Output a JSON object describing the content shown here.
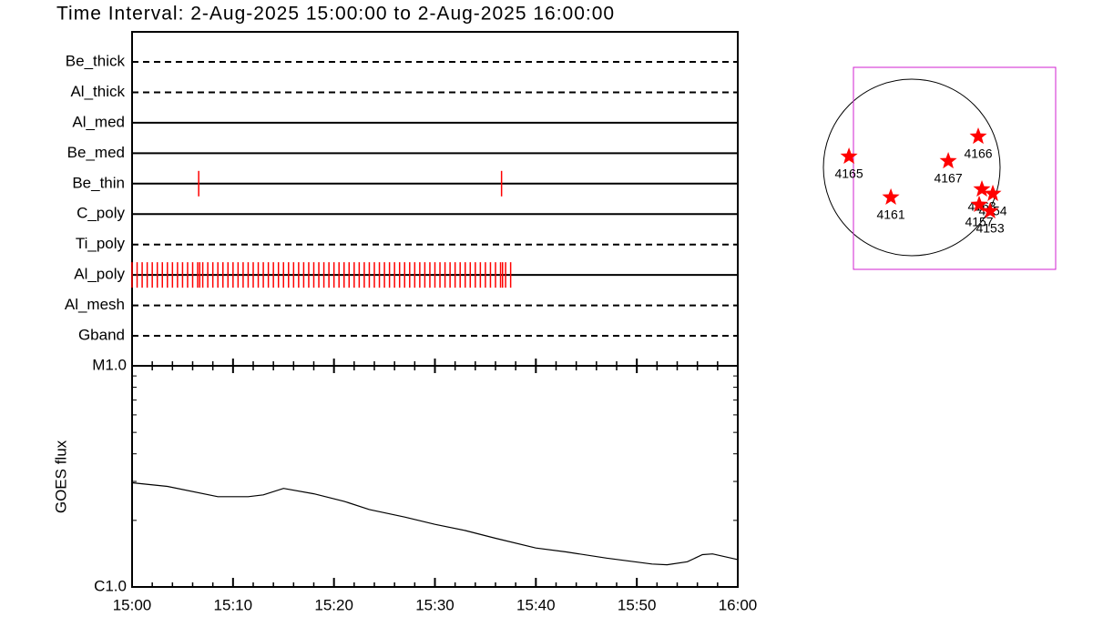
{
  "chart_data": [
    {
      "type": "timeline",
      "title": "Time Interval:  2-Aug-2025 15:00:00 to  2-Aug-2025 16:00:00",
      "xlim": [
        0,
        60
      ],
      "event_color": "#ff0000",
      "series": [
        {
          "name": "Be_thick",
          "line_style": "dashed",
          "x": []
        },
        {
          "name": "Al_thick",
          "line_style": "dashed",
          "x": []
        },
        {
          "name": "Al_med",
          "line_style": "solid",
          "x": []
        },
        {
          "name": "Be_med",
          "line_style": "solid",
          "x": []
        },
        {
          "name": "Be_thin",
          "line_style": "solid",
          "x": [
            6.6,
            36.6
          ]
        },
        {
          "name": "C_poly",
          "line_style": "solid",
          "x": []
        },
        {
          "name": "Ti_poly",
          "line_style": "dashed",
          "x": []
        },
        {
          "name": "Al_poly",
          "line_style": "solid",
          "x": [
            0,
            0.5,
            1,
            1.5,
            2,
            2.5,
            3,
            3.5,
            4,
            4.5,
            5,
            5.5,
            6,
            6.5,
            6.7,
            7,
            7.5,
            8,
            8.5,
            9,
            9.5,
            10,
            10.5,
            11,
            11.5,
            12,
            12.5,
            13,
            13.5,
            14,
            14.5,
            15,
            15.5,
            16,
            16.5,
            17,
            17.5,
            18,
            18.5,
            19,
            19.5,
            20,
            20.5,
            21,
            21.5,
            22,
            22.5,
            23,
            23.5,
            24,
            24.5,
            25,
            25.5,
            26,
            26.5,
            27,
            27.5,
            28,
            28.5,
            29,
            29.5,
            30,
            30.5,
            31,
            31.5,
            32,
            32.5,
            33,
            33.5,
            34,
            34.5,
            35,
            35.5,
            36,
            36.5,
            36.7,
            37,
            37.5
          ]
        },
        {
          "name": "Al_mesh",
          "line_style": "dashed",
          "x": []
        },
        {
          "name": "Gband",
          "line_style": "dashed",
          "x": []
        }
      ]
    },
    {
      "type": "line",
      "y_label": "GOES flux",
      "log_scale": true,
      "color": "#000000",
      "x": [
        0,
        3.5,
        8.5,
        11.5,
        13,
        15,
        18,
        21,
        23.5,
        27,
        30,
        33,
        36,
        40,
        43,
        47,
        51.5,
        53,
        55,
        56.5,
        57.5,
        60
      ],
      "values": [
        2.96e-06,
        2.85e-06,
        2.56e-06,
        2.56e-06,
        2.61e-06,
        2.79e-06,
        2.64e-06,
        2.44e-06,
        2.24e-06,
        2.07e-06,
        1.92e-06,
        1.8e-06,
        1.66e-06,
        1.5e-06,
        1.44e-06,
        1.35e-06,
        1.27e-06,
        1.26e-06,
        1.3e-06,
        1.4e-06,
        1.41e-06,
        1.33e-06
      ],
      "xlim": [
        0,
        60
      ],
      "xticks": [
        {
          "value": 0,
          "label": "15:00"
        },
        {
          "value": 10,
          "label": "15:10"
        },
        {
          "value": 20,
          "label": "15:20"
        },
        {
          "value": 30,
          "label": "15:30"
        },
        {
          "value": 40,
          "label": "15:40"
        },
        {
          "value": 50,
          "label": "15:50"
        },
        {
          "value": 60,
          "label": "16:00"
        }
      ],
      "xminorticks": [
        2,
        4,
        6,
        8,
        12,
        14,
        16,
        18,
        22,
        24,
        26,
        28,
        32,
        34,
        36,
        38,
        42,
        44,
        46,
        48,
        52,
        54,
        56,
        58
      ],
      "ylim": [
        1e-06,
        1e-05
      ],
      "yticks": [
        {
          "value": 1e-06,
          "label": "C1.0"
        },
        {
          "value": 1e-05,
          "label": "M1.0"
        }
      ],
      "yminorticks": [
        2e-06,
        3e-06,
        4e-06,
        5e-06,
        6e-06,
        7e-06,
        8e-06,
        9e-06
      ]
    },
    {
      "type": "scatter",
      "color": "#ff0000",
      "box_color": "#d020d0",
      "xlim": [
        -624,
        1539
      ],
      "ylim": [
        -1091,
        1071
      ],
      "labels": [
        "4165",
        "4161",
        "4167",
        "4166",
        "4163",
        "4154",
        "4157",
        "4153"
      ],
      "x": [
        -672,
        -224,
        390,
        711,
        750,
        867,
        721,
        838
      ],
      "values": [
        117,
        -321,
        68,
        331,
        -234,
        -282,
        -399,
        -468
      ]
    }
  ]
}
